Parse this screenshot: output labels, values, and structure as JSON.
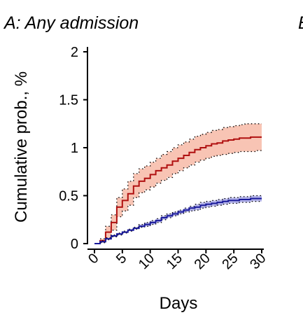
{
  "chart_data": {
    "type": "line",
    "title": "A: Any admission",
    "next_panel_title_fragment": "B",
    "xlabel": "Days",
    "ylabel": "Cumulative prob., %",
    "xlim": [
      0,
      30
    ],
    "ylim": [
      0,
      2
    ],
    "x_ticks": [
      0,
      5,
      10,
      15,
      20,
      25,
      30
    ],
    "x_tick_labels": [
      "0",
      "5",
      "10",
      "15",
      "20",
      "25",
      "30"
    ],
    "y_ticks": [
      0,
      0.5,
      1,
      1.5,
      2
    ],
    "y_tick_labels": [
      "0",
      "0.5",
      "1",
      "1.5",
      "2"
    ],
    "grid": false,
    "legend": "none",
    "series": [
      {
        "color": "#b01010",
        "band_color": "#f4a58c",
        "step": true,
        "x": [
          0,
          1,
          2,
          3,
          4,
          5,
          6,
          7,
          8,
          9,
          10,
          11,
          12,
          13,
          14,
          15,
          16,
          17,
          18,
          19,
          20,
          21,
          22,
          23,
          24,
          25,
          26,
          27,
          28,
          29,
          30
        ],
        "y": [
          0,
          0.03,
          0.12,
          0.22,
          0.38,
          0.45,
          0.52,
          0.6,
          0.65,
          0.68,
          0.72,
          0.76,
          0.79,
          0.82,
          0.86,
          0.89,
          0.92,
          0.95,
          0.98,
          1.0,
          1.02,
          1.04,
          1.05,
          1.07,
          1.08,
          1.09,
          1.1,
          1.1,
          1.11,
          1.11,
          1.11
        ],
        "lower": [
          0,
          0.01,
          0.06,
          0.14,
          0.28,
          0.34,
          0.4,
          0.48,
          0.53,
          0.56,
          0.59,
          0.63,
          0.66,
          0.69,
          0.73,
          0.76,
          0.79,
          0.82,
          0.85,
          0.87,
          0.89,
          0.91,
          0.92,
          0.93,
          0.94,
          0.95,
          0.96,
          0.96,
          0.96,
          0.97,
          0.97
        ],
        "upper": [
          0,
          0.05,
          0.18,
          0.3,
          0.48,
          0.57,
          0.65,
          0.73,
          0.78,
          0.81,
          0.85,
          0.89,
          0.93,
          0.96,
          1.0,
          1.03,
          1.06,
          1.09,
          1.12,
          1.14,
          1.16,
          1.18,
          1.19,
          1.21,
          1.22,
          1.23,
          1.24,
          1.25,
          1.25,
          1.25,
          1.25
        ]
      },
      {
        "color": "#1a1a9a",
        "band_color": "#8f8fe0",
        "step": true,
        "x": [
          0,
          1,
          2,
          3,
          4,
          5,
          6,
          7,
          8,
          9,
          10,
          11,
          12,
          13,
          14,
          15,
          16,
          17,
          18,
          19,
          20,
          21,
          22,
          23,
          24,
          25,
          26,
          27,
          28,
          29,
          30
        ],
        "y": [
          0,
          0.02,
          0.05,
          0.08,
          0.1,
          0.12,
          0.14,
          0.16,
          0.18,
          0.2,
          0.22,
          0.24,
          0.27,
          0.29,
          0.31,
          0.33,
          0.35,
          0.37,
          0.38,
          0.4,
          0.41,
          0.42,
          0.43,
          0.44,
          0.45,
          0.45,
          0.46,
          0.46,
          0.47,
          0.47,
          0.47
        ],
        "lower": [
          0,
          0.01,
          0.04,
          0.07,
          0.09,
          0.11,
          0.13,
          0.15,
          0.17,
          0.18,
          0.2,
          0.22,
          0.25,
          0.27,
          0.29,
          0.31,
          0.33,
          0.34,
          0.35,
          0.37,
          0.38,
          0.39,
          0.4,
          0.41,
          0.42,
          0.42,
          0.43,
          0.43,
          0.44,
          0.44,
          0.44
        ],
        "upper": [
          0,
          0.03,
          0.06,
          0.09,
          0.11,
          0.13,
          0.15,
          0.17,
          0.2,
          0.22,
          0.24,
          0.26,
          0.29,
          0.31,
          0.33,
          0.35,
          0.37,
          0.39,
          0.41,
          0.43,
          0.44,
          0.45,
          0.46,
          0.47,
          0.48,
          0.48,
          0.49,
          0.49,
          0.5,
          0.5,
          0.5
        ]
      }
    ]
  }
}
